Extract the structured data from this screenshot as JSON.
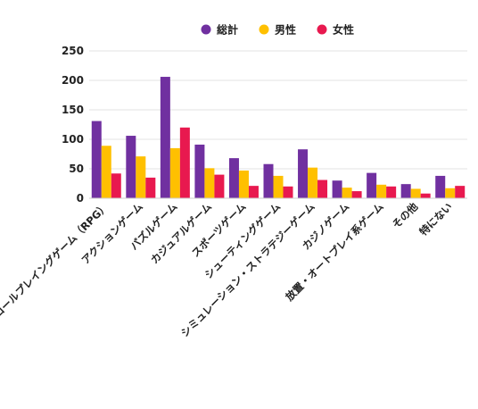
{
  "chart_data": {
    "type": "bar",
    "categories": [
      "ロールプレイングゲーム（RPG）",
      "アクションゲーム",
      "パズルゲーム",
      "カジュアルゲーム",
      "スポーツゲーム",
      "シューティングゲーム",
      "シミュレーション・ストラテジーゲーム",
      "カジノゲーム",
      "放置・オートプレイ系ゲーム",
      "その他",
      "特にない"
    ],
    "series": [
      {
        "name": "総計",
        "color": "#7030a0",
        "values": [
          131,
          106,
          206,
          91,
          68,
          58,
          83,
          30,
          43,
          24,
          38
        ]
      },
      {
        "name": "男性",
        "color": "#ffc000",
        "values": [
          89,
          71,
          85,
          51,
          47,
          38,
          52,
          18,
          23,
          16,
          17
        ]
      },
      {
        "name": "女性",
        "color": "#e8194f",
        "values": [
          42,
          35,
          120,
          40,
          21,
          20,
          31,
          12,
          20,
          8,
          21
        ]
      }
    ],
    "ylim": [
      0,
      250
    ],
    "yticks": [
      0,
      50,
      100,
      150,
      200,
      250
    ],
    "grid": true,
    "legend": "top-center",
    "title": "",
    "xlabel": "",
    "ylabel": ""
  }
}
